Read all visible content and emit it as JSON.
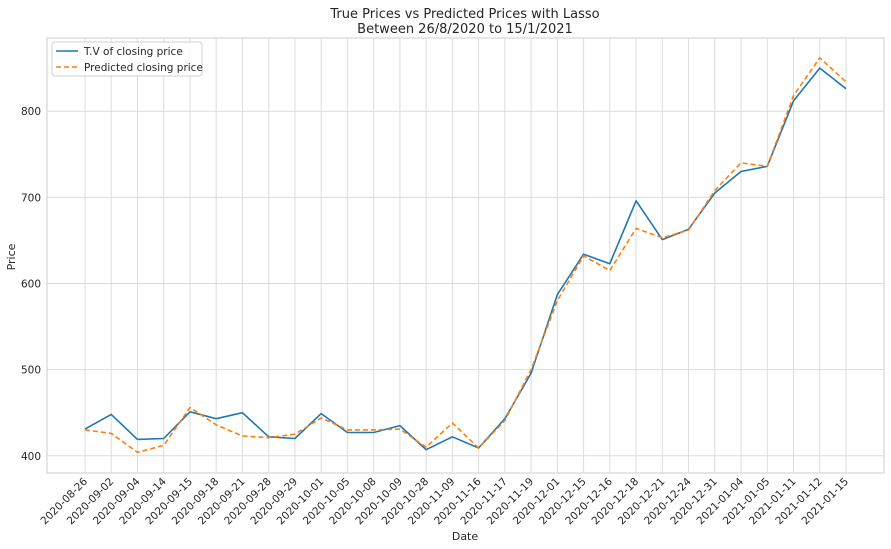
{
  "chart_data": {
    "type": "line",
    "title": "True Prices vs Predicted Prices with Lasso",
    "subtitle": "Between 26/8/2020 to 15/1/2021",
    "xlabel": "Date",
    "ylabel": "Price",
    "ylim": [
      380,
      885
    ],
    "yticks": [
      400,
      500,
      600,
      700,
      800
    ],
    "grid": true,
    "legend_position": "top-left",
    "categories": [
      "2020-08-26",
      "2020-09-02",
      "2020-09-04",
      "2020-09-14",
      "2020-09-15",
      "2020-09-18",
      "2020-09-21",
      "2020-09-28",
      "2020-09-29",
      "2020-10-01",
      "2020-10-05",
      "2020-10-08",
      "2020-10-09",
      "2020-10-28",
      "2020-11-09",
      "2020-11-16",
      "2020-11-17",
      "2020-11-19",
      "2020-12-01",
      "2020-12-15",
      "2020-12-16",
      "2020-12-18",
      "2020-12-21",
      "2020-12-24",
      "2020-12-31",
      "2021-01-04",
      "2021-01-05",
      "2021-01-11",
      "2021-01-12",
      "2021-01-15"
    ],
    "series": [
      {
        "name": "T.V of closing price",
        "color": "#1f77b4",
        "dash": "solid",
        "values": [
          431,
          448,
          419,
          420,
          451,
          443,
          450,
          422,
          420,
          449,
          427,
          427,
          435,
          407,
          422,
          409,
          443,
          496,
          587,
          634,
          623,
          696,
          651,
          663,
          705,
          730,
          736,
          812,
          850,
          826
        ]
      },
      {
        "name": "Predicted closing price",
        "color": "#ff7f0e",
        "dash": "dashed",
        "values": [
          430,
          426,
          404,
          412,
          456,
          436,
          423,
          421,
          425,
          444,
          430,
          430,
          431,
          410,
          438,
          409,
          441,
          500,
          580,
          632,
          615,
          664,
          653,
          662,
          708,
          740,
          736,
          818,
          862,
          834
        ]
      }
    ]
  }
}
